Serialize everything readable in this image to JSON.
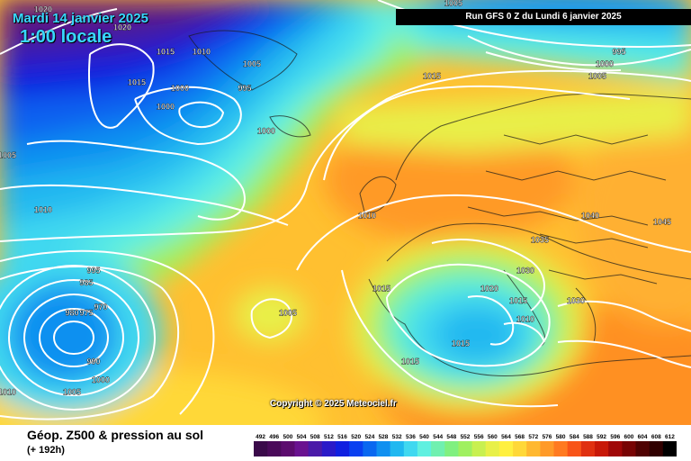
{
  "header": {
    "date": "Mardi 14 janvier 2025",
    "time": "1:00 locale",
    "run": "Run GFS 0 Z du Lundi 6 janvier 2025"
  },
  "copyright": "Copyright © 2025 Meteociel.fr",
  "footer": {
    "title": "Géop. Z500 & pression au sol",
    "subtitle": "(+ 192h)"
  },
  "legend": {
    "values": [
      "492",
      "496",
      "500",
      "504",
      "508",
      "512",
      "516",
      "520",
      "524",
      "528",
      "532",
      "536",
      "540",
      "544",
      "548",
      "552",
      "556",
      "560",
      "564",
      "568",
      "572",
      "576",
      "580",
      "584",
      "588",
      "592",
      "596",
      "600",
      "604",
      "608",
      "612"
    ],
    "colors": [
      "#3a0a4a",
      "#4a0a5a",
      "#5c0c6e",
      "#6a1290",
      "#4a1aa8",
      "#2a1ac8",
      "#1020e0",
      "#0a40f0",
      "#0a68f0",
      "#1090f0",
      "#20b8f0",
      "#40d8f0",
      "#60f0e0",
      "#70f0b0",
      "#80f080",
      "#a0f060",
      "#c8f050",
      "#e8f048",
      "#fff040",
      "#ffd838",
      "#ffb830",
      "#ff9a28",
      "#ff7a20",
      "#f85418",
      "#e03010",
      "#c81808",
      "#a00808",
      "#780404",
      "#500202",
      "#300000",
      "#000000"
    ]
  },
  "isobar_labels": [
    {
      "text": "1020",
      "lon": -50,
      "lat": 64
    },
    {
      "text": "1020",
      "lon": -39,
      "lat": 61
    },
    {
      "text": "1015",
      "lon": -33,
      "lat": 57
    },
    {
      "text": "1010",
      "lon": -28,
      "lat": 57
    },
    {
      "text": "1005",
      "lon": -21,
      "lat": 55
    },
    {
      "text": "1015",
      "lon": -37,
      "lat": 52
    },
    {
      "text": "1000",
      "lon": -31,
      "lat": 51
    },
    {
      "text": "995",
      "lon": -22,
      "lat": 51
    },
    {
      "text": "1000",
      "lon": -33,
      "lat": 48
    },
    {
      "text": "1000",
      "lon": -19,
      "lat": 44
    },
    {
      "text": "1005",
      "lon": -55,
      "lat": 40
    },
    {
      "text": "1015",
      "lon": 4,
      "lat": 53
    },
    {
      "text": "1005",
      "lon": 7,
      "lat": 65
    },
    {
      "text": "995",
      "lon": 30,
      "lat": 57
    },
    {
      "text": "1000",
      "lon": 28,
      "lat": 55
    },
    {
      "text": "1005",
      "lon": 27,
      "lat": 53
    },
    {
      "text": "1010",
      "lon": -50,
      "lat": 31
    },
    {
      "text": "1010",
      "lon": -5,
      "lat": 30
    },
    {
      "text": "1040",
      "lon": 26,
      "lat": 30
    },
    {
      "text": "1045",
      "lon": 36,
      "lat": 29
    },
    {
      "text": "1035",
      "lon": 19,
      "lat": 26
    },
    {
      "text": "1030",
      "lon": 17,
      "lat": 21
    },
    {
      "text": "1020",
      "lon": 12,
      "lat": 18
    },
    {
      "text": "1015",
      "lon": 16,
      "lat": 16
    },
    {
      "text": "1010",
      "lon": 17,
      "lat": 13
    },
    {
      "text": "1030",
      "lon": 24,
      "lat": 16
    },
    {
      "text": "1015",
      "lon": -3,
      "lat": 18
    },
    {
      "text": "1015",
      "lon": 8,
      "lat": 9
    },
    {
      "text": "1015",
      "lon": 1,
      "lat": 6
    },
    {
      "text": "1005",
      "lon": -16,
      "lat": 14
    },
    {
      "text": "995",
      "lon": -43,
      "lat": 21
    },
    {
      "text": "985",
      "lon": -44,
      "lat": 19
    },
    {
      "text": "970",
      "lon": -42,
      "lat": 15
    },
    {
      "text": "980",
      "lon": -46,
      "lat": 14
    },
    {
      "text": "975",
      "lon": -44,
      "lat": 14
    },
    {
      "text": "990",
      "lon": -43,
      "lat": 6
    },
    {
      "text": "1000",
      "lon": -42,
      "lat": 3
    },
    {
      "text": "1005",
      "lon": -46,
      "lat": 1
    },
    {
      "text": "1010",
      "lon": -55,
      "lat": 1
    }
  ]
}
